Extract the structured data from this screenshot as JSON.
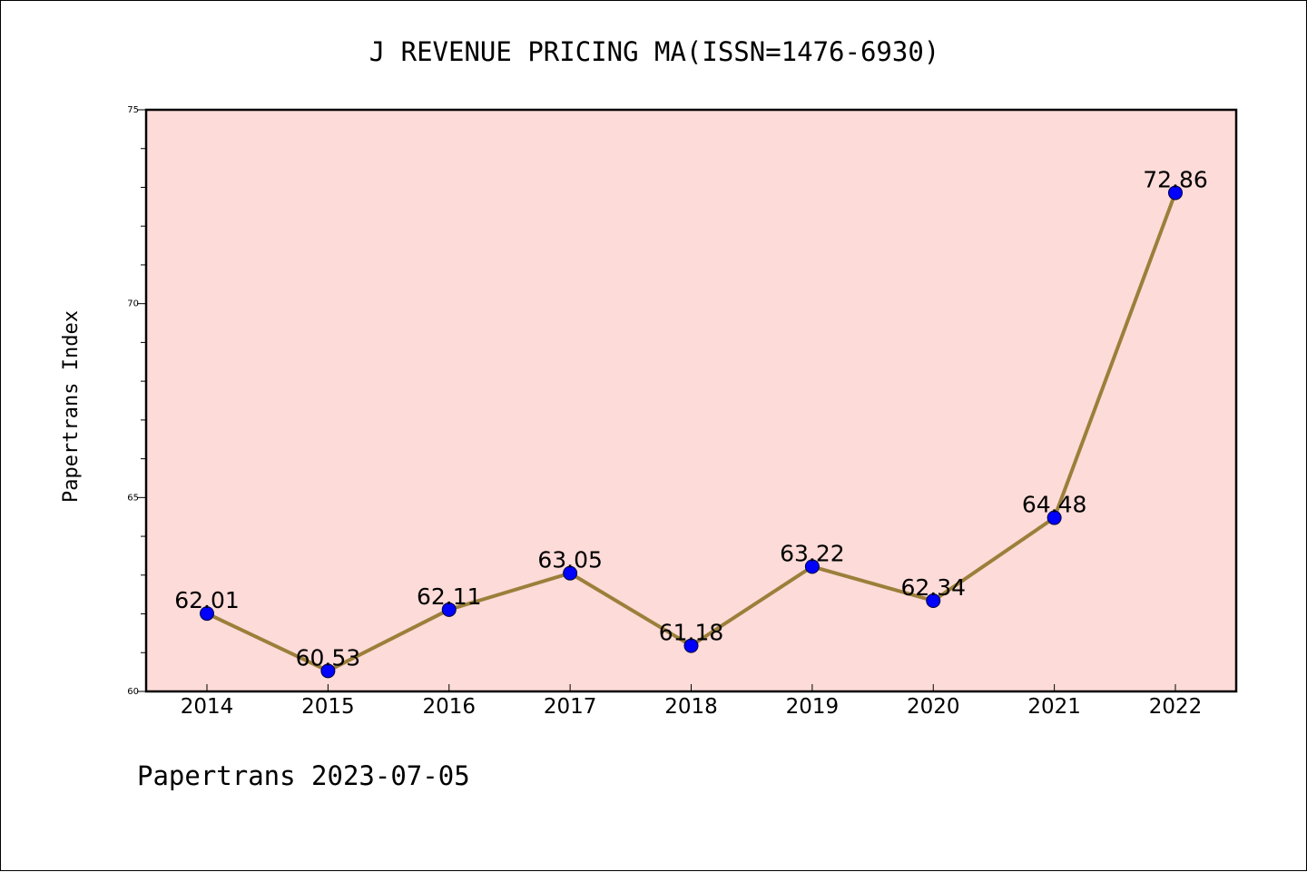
{
  "chart_data": {
    "type": "line",
    "title": "J REVENUE PRICING MA(ISSN=1476-6930)",
    "xlabel": "",
    "ylabel": "Papertrans Index",
    "categories": [
      "2014",
      "2015",
      "2016",
      "2017",
      "2018",
      "2019",
      "2020",
      "2021",
      "2022"
    ],
    "values": [
      62.01,
      60.53,
      62.11,
      63.05,
      61.18,
      63.22,
      62.34,
      64.48,
      72.86
    ],
    "data_labels": [
      "62.01",
      "60.53",
      "62.11",
      "63.05",
      "61.18",
      "63.22",
      "62.34",
      "64.48",
      "72.86"
    ],
    "ylim": [
      60,
      75
    ],
    "yticks": [
      "60",
      "65",
      "70",
      "75"
    ],
    "grid": false,
    "legend": "none",
    "plot_background": "#fddbd8",
    "line_color": "#9b7f3a",
    "marker_color": "#0000ff",
    "footer": "Papertrans 2023-07-05"
  }
}
